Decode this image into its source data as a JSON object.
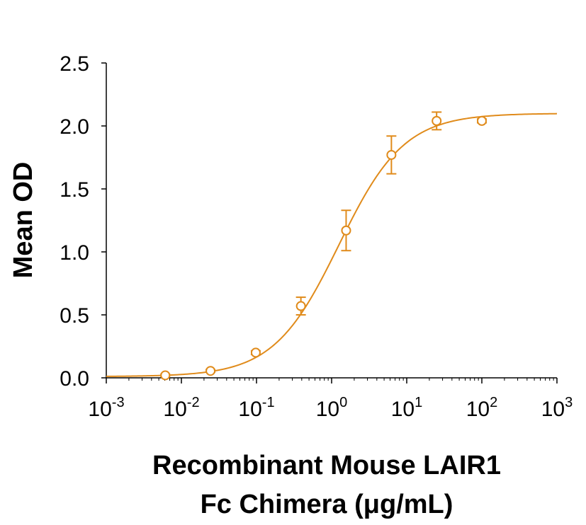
{
  "chart_data": {
    "type": "scatter",
    "title": "",
    "xlabel_lines": [
      "Recombinant Mouse LAIR1",
      "Fc Chimera (μg/mL)"
    ],
    "ylabel": "Mean OD",
    "x_scale": "log10",
    "xlim": [
      0.001,
      1000
    ],
    "ylim": [
      0,
      2.5
    ],
    "x_ticks": [
      {
        "value": 0.001,
        "base": "10",
        "exp": "-3"
      },
      {
        "value": 0.01,
        "base": "10",
        "exp": "-2"
      },
      {
        "value": 0.1,
        "base": "10",
        "exp": "-1"
      },
      {
        "value": 1,
        "base": "10",
        "exp": "0"
      },
      {
        "value": 10,
        "base": "10",
        "exp": "1"
      },
      {
        "value": 100,
        "base": "10",
        "exp": "2"
      },
      {
        "value": 1000,
        "base": "10",
        "exp": "3"
      }
    ],
    "y_ticks": [
      {
        "value": 0.0,
        "label": "0.0"
      },
      {
        "value": 0.5,
        "label": "0.5"
      },
      {
        "value": 1.0,
        "label": "1.0"
      },
      {
        "value": 1.5,
        "label": "1.5"
      },
      {
        "value": 2.0,
        "label": "2.0"
      },
      {
        "value": 2.5,
        "label": "2.5"
      }
    ],
    "grid": false,
    "legend": "none",
    "color": "#E08B1B",
    "series": [
      {
        "points": [
          {
            "x": 0.0061,
            "y": 0.02,
            "err": 0.01
          },
          {
            "x": 0.0244,
            "y": 0.055,
            "err": 0.01
          },
          {
            "x": 0.0977,
            "y": 0.2,
            "err": 0.015
          },
          {
            "x": 0.39,
            "y": 0.57,
            "err": 0.07
          },
          {
            "x": 1.56,
            "y": 1.17,
            "err": 0.16
          },
          {
            "x": 6.25,
            "y": 1.77,
            "err": 0.15
          },
          {
            "x": 25,
            "y": 2.04,
            "err": 0.07
          },
          {
            "x": 100,
            "y": 2.04,
            "err": 0.015
          }
        ],
        "fit": {
          "model": "4PL",
          "bottom": 0.01,
          "top": 2.1,
          "ec50": 1.25,
          "hill": 1.0
        }
      }
    ]
  }
}
